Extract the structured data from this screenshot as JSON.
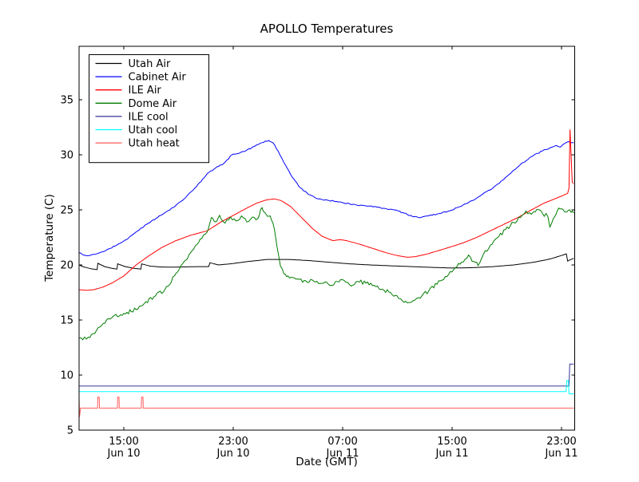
{
  "title": "APOLLO Temperatures",
  "chart_data": {
    "type": "line",
    "title": "APOLLO Temperatures",
    "xlabel": "Date (GMT)",
    "ylabel": "Temperature (C)",
    "grid": false,
    "legend_position": "upper left",
    "x_unit": "hours since Jun 10 00:00 GMT",
    "xlim": [
      11.73,
      47.97
    ],
    "ylim": [
      5,
      40
    ],
    "yticks": [
      5,
      10,
      15,
      20,
      25,
      30,
      35
    ],
    "xticks": [
      {
        "t": 15,
        "line1": "15:00",
        "line2": "Jun 10"
      },
      {
        "t": 23,
        "line1": "23:00",
        "line2": "Jun 10"
      },
      {
        "t": 31,
        "line1": "07:00",
        "line2": "Jun 11"
      },
      {
        "t": 39,
        "line1": "15:00",
        "line2": "Jun 11"
      },
      {
        "t": 47,
        "line1": "23:00",
        "line2": "Jun 11"
      }
    ],
    "series": [
      {
        "name": "Utah Air",
        "color": "#000000",
        "noise": 0,
        "points": [
          [
            11.73,
            20.0
          ],
          [
            12.0,
            19.85
          ],
          [
            12.6,
            19.65
          ],
          [
            13.05,
            19.58
          ],
          [
            13.1,
            20.15
          ],
          [
            13.6,
            19.85
          ],
          [
            14.1,
            19.7
          ],
          [
            14.5,
            19.62
          ],
          [
            14.55,
            20.1
          ],
          [
            15.1,
            19.85
          ],
          [
            15.7,
            19.7
          ],
          [
            16.25,
            19.62
          ],
          [
            16.3,
            20.1
          ],
          [
            16.9,
            19.9
          ],
          [
            17.6,
            19.82
          ],
          [
            18.5,
            19.8
          ],
          [
            19.5,
            19.82
          ],
          [
            20.5,
            19.85
          ],
          [
            21.2,
            19.85
          ],
          [
            21.3,
            20.2
          ],
          [
            21.9,
            20.0
          ],
          [
            22.8,
            20.1
          ],
          [
            24.0,
            20.3
          ],
          [
            25.5,
            20.5
          ],
          [
            27.0,
            20.5
          ],
          [
            28.5,
            20.4
          ],
          [
            30.0,
            20.25
          ],
          [
            31.5,
            20.1
          ],
          [
            33.0,
            20.0
          ],
          [
            34.5,
            19.92
          ],
          [
            36.0,
            19.85
          ],
          [
            37.5,
            19.78
          ],
          [
            39.0,
            19.72
          ],
          [
            40.5,
            19.75
          ],
          [
            42.0,
            19.85
          ],
          [
            43.5,
            20.0
          ],
          [
            45.0,
            20.25
          ],
          [
            46.2,
            20.55
          ],
          [
            47.1,
            20.9
          ],
          [
            47.35,
            21.0
          ],
          [
            47.45,
            20.35
          ],
          [
            47.7,
            20.5
          ],
          [
            47.9,
            20.6
          ]
        ]
      },
      {
        "name": "Cabinet Air",
        "color": "#0000ff",
        "noise": 0.05,
        "points": [
          [
            11.73,
            21.1
          ],
          [
            12.1,
            20.9
          ],
          [
            12.5,
            20.85
          ],
          [
            13.0,
            21.0
          ],
          [
            13.5,
            21.2
          ],
          [
            14.0,
            21.5
          ],
          [
            14.6,
            21.9
          ],
          [
            15.2,
            22.3
          ],
          [
            15.9,
            23.0
          ],
          [
            16.8,
            23.8
          ],
          [
            17.7,
            24.5
          ],
          [
            18.6,
            25.2
          ],
          [
            19.5,
            26.1
          ],
          [
            20.3,
            27.1
          ],
          [
            21.1,
            28.3
          ],
          [
            21.7,
            28.8
          ],
          [
            22.3,
            29.2
          ],
          [
            22.9,
            30.0
          ],
          [
            23.8,
            30.3
          ],
          [
            24.6,
            30.8
          ],
          [
            25.1,
            31.1
          ],
          [
            25.6,
            31.3
          ],
          [
            25.9,
            31.1
          ],
          [
            26.3,
            30.3
          ],
          [
            26.8,
            29.1
          ],
          [
            27.3,
            28.0
          ],
          [
            27.9,
            27.0
          ],
          [
            28.5,
            26.4
          ],
          [
            29.2,
            26.0
          ],
          [
            30.0,
            25.85
          ],
          [
            31.0,
            25.65
          ],
          [
            32.0,
            25.45
          ],
          [
            33.0,
            25.35
          ],
          [
            34.0,
            25.15
          ],
          [
            34.8,
            25.0
          ],
          [
            35.5,
            24.7
          ],
          [
            36.1,
            24.4
          ],
          [
            36.6,
            24.3
          ],
          [
            37.2,
            24.45
          ],
          [
            38.0,
            24.65
          ],
          [
            38.8,
            24.9
          ],
          [
            39.6,
            25.3
          ],
          [
            40.5,
            25.85
          ],
          [
            41.2,
            26.4
          ],
          [
            42.0,
            27.0
          ],
          [
            42.8,
            27.8
          ],
          [
            43.5,
            28.6
          ],
          [
            44.2,
            29.3
          ],
          [
            44.9,
            29.9
          ],
          [
            45.6,
            30.35
          ],
          [
            46.2,
            30.65
          ],
          [
            46.6,
            30.85
          ],
          [
            46.9,
            30.7
          ],
          [
            47.2,
            31.0
          ],
          [
            47.5,
            31.2
          ],
          [
            47.9,
            31.1
          ]
        ]
      },
      {
        "name": "ILE Air",
        "color": "#ff0000",
        "noise": 0,
        "points": [
          [
            11.73,
            17.75
          ],
          [
            12.3,
            17.7
          ],
          [
            12.8,
            17.75
          ],
          [
            13.5,
            18.0
          ],
          [
            14.2,
            18.4
          ],
          [
            15.0,
            19.0
          ],
          [
            15.9,
            20.0
          ],
          [
            16.8,
            20.8
          ],
          [
            17.8,
            21.6
          ],
          [
            18.8,
            22.2
          ],
          [
            19.9,
            22.7
          ],
          [
            21.1,
            23.1
          ],
          [
            22.1,
            23.9
          ],
          [
            23.0,
            24.5
          ],
          [
            23.9,
            25.1
          ],
          [
            24.7,
            25.6
          ],
          [
            25.4,
            25.9
          ],
          [
            26.0,
            26.0
          ],
          [
            26.5,
            25.85
          ],
          [
            27.2,
            25.3
          ],
          [
            28.0,
            24.3
          ],
          [
            28.8,
            23.3
          ],
          [
            29.5,
            22.6
          ],
          [
            30.3,
            22.2
          ],
          [
            30.8,
            22.3
          ],
          [
            31.3,
            22.2
          ],
          [
            32.2,
            21.9
          ],
          [
            33.2,
            21.5
          ],
          [
            34.2,
            21.1
          ],
          [
            35.0,
            20.85
          ],
          [
            35.7,
            20.7
          ],
          [
            36.3,
            20.75
          ],
          [
            37.2,
            21.0
          ],
          [
            38.0,
            21.3
          ],
          [
            38.8,
            21.6
          ],
          [
            39.8,
            22.0
          ],
          [
            40.8,
            22.5
          ],
          [
            41.8,
            23.1
          ],
          [
            42.8,
            23.7
          ],
          [
            43.8,
            24.3
          ],
          [
            44.8,
            25.0
          ],
          [
            45.7,
            25.6
          ],
          [
            46.5,
            26.0
          ],
          [
            47.1,
            26.3
          ],
          [
            47.45,
            26.5
          ],
          [
            47.55,
            27.0
          ],
          [
            47.62,
            32.3
          ],
          [
            47.7,
            30.0
          ],
          [
            47.78,
            27.5
          ],
          [
            47.9,
            27.4
          ]
        ]
      },
      {
        "name": "Dome Air",
        "color": "#007c00",
        "noise": 0.18,
        "points": [
          [
            11.73,
            13.35
          ],
          [
            12.0,
            13.2
          ],
          [
            12.4,
            13.45
          ],
          [
            13.0,
            14.05
          ],
          [
            13.5,
            14.7
          ],
          [
            14.2,
            15.3
          ],
          [
            15.0,
            15.6
          ],
          [
            15.9,
            15.95
          ],
          [
            16.5,
            16.5
          ],
          [
            17.2,
            17.1
          ],
          [
            18.0,
            17.75
          ],
          [
            18.7,
            19.0
          ],
          [
            19.3,
            20.1
          ],
          [
            20.0,
            21.3
          ],
          [
            20.7,
            22.4
          ],
          [
            21.1,
            23.0
          ],
          [
            21.4,
            24.3
          ],
          [
            21.7,
            23.9
          ],
          [
            22.0,
            24.5
          ],
          [
            22.4,
            23.8
          ],
          [
            22.8,
            24.35
          ],
          [
            23.2,
            24.0
          ],
          [
            23.6,
            24.45
          ],
          [
            24.0,
            23.9
          ],
          [
            24.4,
            24.35
          ],
          [
            24.8,
            24.2
          ],
          [
            25.1,
            25.2
          ],
          [
            25.4,
            24.6
          ],
          [
            25.7,
            24.45
          ],
          [
            25.9,
            23.8
          ],
          [
            26.1,
            22.5
          ],
          [
            26.3,
            21.0
          ],
          [
            26.45,
            19.9
          ],
          [
            26.7,
            19.2
          ],
          [
            27.0,
            19.0
          ],
          [
            27.6,
            18.7
          ],
          [
            28.3,
            18.55
          ],
          [
            29.0,
            18.45
          ],
          [
            29.6,
            18.35
          ],
          [
            30.2,
            18.15
          ],
          [
            30.6,
            18.5
          ],
          [
            31.1,
            18.6
          ],
          [
            31.5,
            18.2
          ],
          [
            32.1,
            18.5
          ],
          [
            32.7,
            18.35
          ],
          [
            33.3,
            18.15
          ],
          [
            33.9,
            17.8
          ],
          [
            34.5,
            17.5
          ],
          [
            35.1,
            16.95
          ],
          [
            35.6,
            16.7
          ],
          [
            36.0,
            16.6
          ],
          [
            36.4,
            16.95
          ],
          [
            36.8,
            17.2
          ],
          [
            37.3,
            17.65
          ],
          [
            37.9,
            18.25
          ],
          [
            38.5,
            18.95
          ],
          [
            39.1,
            19.55
          ],
          [
            39.7,
            20.25
          ],
          [
            40.2,
            20.9
          ],
          [
            40.6,
            20.3
          ],
          [
            40.9,
            19.95
          ],
          [
            41.3,
            21.0
          ],
          [
            41.8,
            21.8
          ],
          [
            42.3,
            22.45
          ],
          [
            42.9,
            23.2
          ],
          [
            43.5,
            23.85
          ],
          [
            44.0,
            24.3
          ],
          [
            44.4,
            24.9
          ],
          [
            44.8,
            24.6
          ],
          [
            45.2,
            25.05
          ],
          [
            45.6,
            24.7
          ],
          [
            46.0,
            24.4
          ],
          [
            46.15,
            23.45
          ],
          [
            46.4,
            24.2
          ],
          [
            46.7,
            24.95
          ],
          [
            47.0,
            25.1
          ],
          [
            47.3,
            24.8
          ],
          [
            47.6,
            25.0
          ],
          [
            47.9,
            24.7
          ]
        ]
      },
      {
        "name": "ILE cool",
        "color": "#333399",
        "noise": 0,
        "points": [
          [
            11.73,
            9.0
          ],
          [
            47.55,
            9.0
          ],
          [
            47.6,
            11.0
          ],
          [
            47.9,
            11.0
          ]
        ]
      },
      {
        "name": "Utah cool",
        "color": "#00ffff",
        "noise": 0,
        "points": [
          [
            11.73,
            8.5
          ],
          [
            47.33,
            8.5
          ],
          [
            47.38,
            9.5
          ],
          [
            47.5,
            9.5
          ],
          [
            47.55,
            8.3
          ],
          [
            47.9,
            8.3
          ]
        ]
      },
      {
        "name": "Utah heat",
        "color": "#ff5c5c",
        "noise": 0,
        "points": [
          [
            11.73,
            8.0
          ],
          [
            11.76,
            6.2
          ],
          [
            11.84,
            7.0
          ],
          [
            13.08,
            7.0
          ],
          [
            13.1,
            8.0
          ],
          [
            13.2,
            8.0
          ],
          [
            13.22,
            7.0
          ],
          [
            14.53,
            7.0
          ],
          [
            14.55,
            8.0
          ],
          [
            14.65,
            8.0
          ],
          [
            14.67,
            7.0
          ],
          [
            16.28,
            7.0
          ],
          [
            16.3,
            8.0
          ],
          [
            16.4,
            8.0
          ],
          [
            16.42,
            7.0
          ],
          [
            47.9,
            7.0
          ]
        ]
      }
    ]
  }
}
